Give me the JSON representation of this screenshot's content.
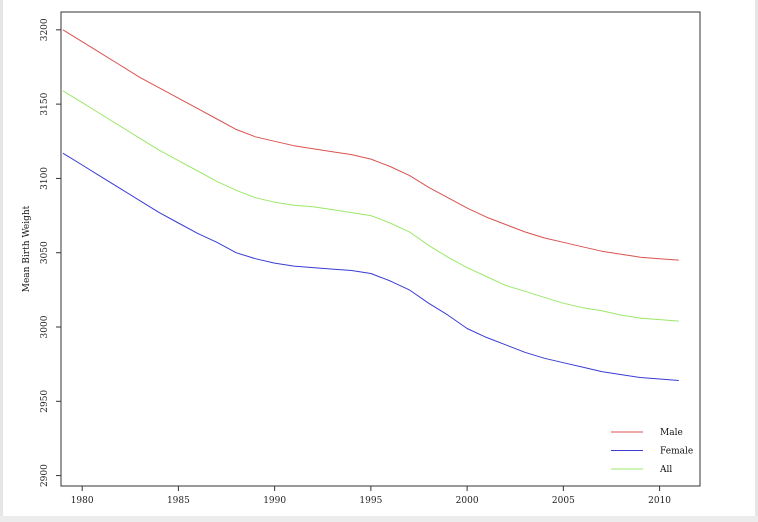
{
  "chart_data": {
    "type": "line",
    "title": "",
    "xlabel": "",
    "ylabel": "Mean Birth Weight",
    "xlim": [
      1978.9,
      2012.1
    ],
    "ylim": [
      2893,
      3212
    ],
    "x_ticks": [
      1980,
      1985,
      1990,
      1995,
      2000,
      2005,
      2010
    ],
    "y_ticks": [
      2900,
      2950,
      3000,
      3050,
      3100,
      3150,
      3200
    ],
    "grid": false,
    "legend_position": "bottom-right",
    "x": [
      1979,
      1980,
      1981,
      1982,
      1983,
      1984,
      1985,
      1986,
      1987,
      1988,
      1989,
      1990,
      1991,
      1992,
      1993,
      1994,
      1995,
      1996,
      1997,
      1998,
      1999,
      2000,
      2001,
      2002,
      2003,
      2004,
      2005,
      2006,
      2007,
      2008,
      2009,
      2010,
      2011
    ],
    "series": [
      {
        "name": "Male",
        "color": "#d9534f",
        "values": [
          3200,
          3192,
          3184,
          3176,
          3168,
          3161,
          3154,
          3147,
          3140,
          3133,
          3128,
          3125,
          3122,
          3120,
          3118,
          3116,
          3113,
          3108,
          3102,
          3094,
          3087,
          3080,
          3074,
          3069,
          3064,
          3060,
          3057,
          3054,
          3051,
          3049,
          3047,
          3046,
          3045
        ]
      },
      {
        "name": "Female",
        "color": "#3b3bd4",
        "values": [
          3117,
          3109,
          3101,
          3093,
          3085,
          3077,
          3070,
          3063,
          3057,
          3050,
          3046,
          3043,
          3041,
          3040,
          3039,
          3038,
          3036,
          3031,
          3025,
          3016,
          3008,
          2999,
          2993,
          2988,
          2983,
          2979,
          2976,
          2973,
          2970,
          2968,
          2966,
          2965,
          2964
        ]
      },
      {
        "name": "All",
        "color": "#9be86a",
        "values": [
          3159,
          3151,
          3143,
          3135,
          3127,
          3119,
          3112,
          3105,
          3098,
          3092,
          3087,
          3084,
          3082,
          3081,
          3079,
          3077,
          3075,
          3070,
          3064,
          3055,
          3047,
          3040,
          3034,
          3028,
          3024,
          3020,
          3016,
          3013,
          3011,
          3008,
          3006,
          3005,
          3004
        ]
      }
    ]
  }
}
